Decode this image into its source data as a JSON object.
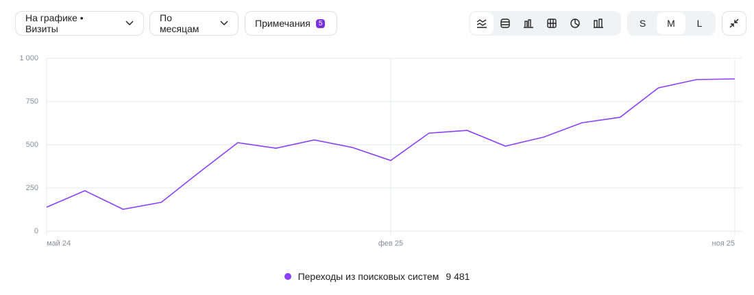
{
  "toolbar": {
    "chart_select": "На графике • Визиты",
    "period_select": "По месяцам",
    "notes_button": "Примечания",
    "notes_count": "5",
    "sizes": [
      "S",
      "M",
      "L"
    ]
  },
  "chart_data": {
    "type": "line",
    "categories": [
      "май 24",
      null,
      null,
      null,
      null,
      null,
      null,
      null,
      null,
      "фев 25",
      null,
      null,
      null,
      null,
      null,
      null,
      null,
      null,
      "ноя 25"
    ],
    "series": [
      {
        "name": "Переходы из поисковых систем",
        "color": "#8a3ffc",
        "total": "9 481",
        "values": [
          139,
          234,
          127,
          167,
          342,
          512,
          480,
          528,
          484,
          409,
          567,
          583,
          492,
          544,
          627,
          659,
          829,
          877,
          881
        ]
      }
    ],
    "ylim": [
      0,
      1000
    ],
    "yticks": [
      0,
      250,
      500,
      750,
      {
        "value": 1000,
        "label": "1 000"
      }
    ],
    "grid": true
  }
}
